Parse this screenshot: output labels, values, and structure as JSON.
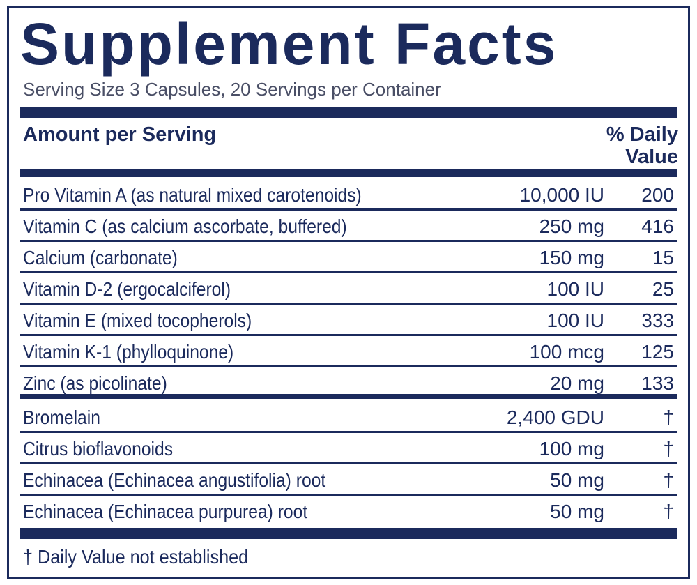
{
  "title": "Supplement Facts",
  "serving_info": "Serving Size 3 Capsules, 20 Servings per Container",
  "table": {
    "headers": [
      "Amount per Serving",
      "% Daily Value"
    ],
    "sections": [
      {
        "rows": [
          [
            "Pro Vitamin A (as natural mixed carotenoids)",
            "10,000 IU",
            "200"
          ],
          [
            "Vitamin C (as calcium ascorbate, buffered)",
            "250 mg",
            "416"
          ],
          [
            "Calcium (carbonate)",
            "150 mg",
            "15"
          ],
          [
            "Vitamin D-2 (ergocalciferol)",
            "100 IU",
            "25"
          ],
          [
            "Vitamin E (mixed tocopherols)",
            "100 IU",
            "333"
          ],
          [
            "Vitamin K-1 (phylloquinone)",
            "100 mcg",
            "125"
          ],
          [
            "Zinc (as picolinate)",
            "20 mg",
            "133"
          ]
        ]
      },
      {
        "rows": [
          [
            "Bromelain",
            "2,400 GDU",
            "†"
          ],
          [
            "Citrus bioflavonoids",
            "100 mg",
            "†"
          ],
          [
            "Echinacea (Echinacea angustifolia) root",
            "50 mg",
            "†"
          ],
          [
            "Echinacea (Echinacea purpurea) root",
            "50 mg",
            "†"
          ]
        ]
      }
    ]
  },
  "footnote": "† Daily Value not established"
}
